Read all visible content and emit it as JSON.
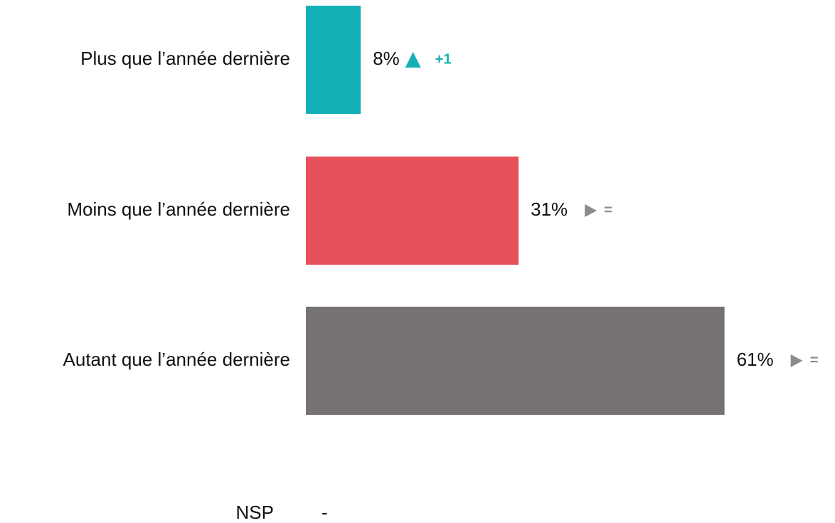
{
  "chart_data": {
    "type": "bar",
    "categories": [
      "Plus que l’année dernière",
      "Moins que l’année dernière",
      "Autant que l’année dernière",
      "NSP"
    ],
    "values": [
      8,
      31,
      61,
      null
    ],
    "value_labels": [
      "8%",
      "31%",
      "61%",
      "-"
    ],
    "colors": [
      "#13b1b7",
      "#e6505a",
      "#767271",
      null
    ],
    "changes": [
      "+1",
      "=",
      "=",
      null
    ],
    "change_colors": [
      "#13b1b7",
      "#8c8c8c",
      "#8c8c8c",
      null
    ]
  }
}
